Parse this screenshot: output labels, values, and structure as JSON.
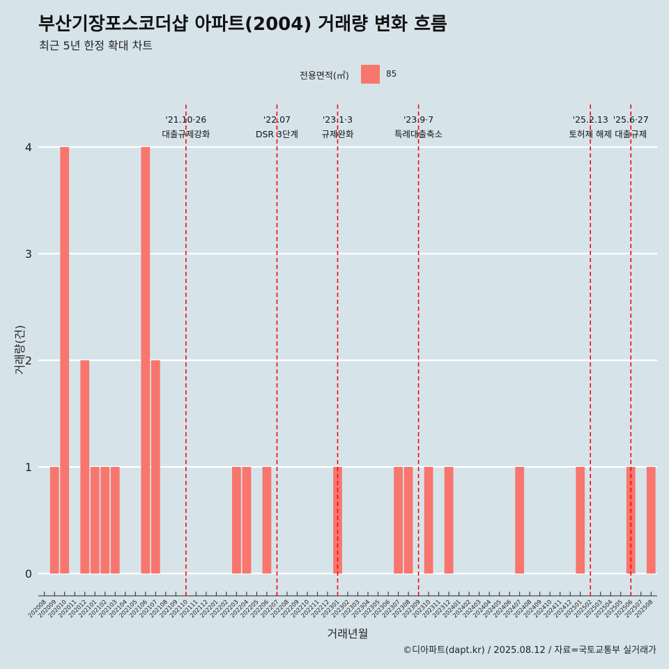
{
  "title": "부산기장포스코더샵 아파트(2004) 거래량 변화 흐름",
  "subtitle": "최근 5년 한정 확대 차트",
  "legend": {
    "title": "전용면적(㎡)",
    "label": "85",
    "color": "#f8766d"
  },
  "caption": "©디아파트(dapt.kr) / 2025.08.12 / 자료=국토교통부 실거래가",
  "chart_data": {
    "type": "bar",
    "xlabel": "거래년월",
    "ylabel": "거래량(건)",
    "ylim": [
      0,
      4
    ],
    "yticks": [
      0,
      1,
      2,
      3,
      4
    ],
    "grid": true,
    "legend_position": "top",
    "bar_color": "#f8766d",
    "categories": [
      "202008",
      "202009",
      "202010",
      "202011",
      "202012",
      "202101",
      "202102",
      "202103",
      "202104",
      "202105",
      "202106",
      "202107",
      "202108",
      "202109",
      "202110",
      "202111",
      "202112",
      "202201",
      "202202",
      "202203",
      "202204",
      "202205",
      "202206",
      "202207",
      "202208",
      "202209",
      "202210",
      "202211",
      "202212",
      "202301",
      "202302",
      "202303",
      "202304",
      "202305",
      "202306",
      "202307",
      "202308",
      "202309",
      "202310",
      "202311",
      "202312",
      "202401",
      "202402",
      "202403",
      "202404",
      "202405",
      "202406",
      "202407",
      "202408",
      "202409",
      "202410",
      "202411",
      "202412",
      "202501",
      "202502",
      "202503",
      "202504",
      "202505",
      "202506",
      "202507",
      "202508"
    ],
    "series": [
      {
        "name": "85",
        "values": [
          0,
          1,
          4,
          0,
          2,
          1,
          1,
          1,
          0,
          0,
          4,
          2,
          0,
          0,
          0,
          0,
          0,
          0,
          0,
          1,
          1,
          0,
          1,
          0,
          0,
          0,
          0,
          0,
          0,
          1,
          0,
          0,
          0,
          0,
          0,
          1,
          1,
          0,
          1,
          0,
          1,
          0,
          0,
          0,
          0,
          0,
          0,
          1,
          0,
          0,
          0,
          0,
          0,
          1,
          0,
          0,
          0,
          0,
          1,
          0,
          1
        ]
      }
    ],
    "annotations": [
      {
        "date": "202110",
        "line1": "'21.10·26",
        "line2": "대출규제강화"
      },
      {
        "date": "202207",
        "line1": "'22.07",
        "line2": "DSR 3단계"
      },
      {
        "date": "202301",
        "line1": "'23.1·3",
        "line2": "규제완화"
      },
      {
        "date": "202309",
        "line1": "'23.9·7",
        "line2": "특례대출축소"
      },
      {
        "date": "202502",
        "line1": "'25.2.13",
        "line2": "토허제 해제"
      },
      {
        "date": "202506",
        "line1": "'25.6·27",
        "line2": "대출규제"
      }
    ]
  }
}
